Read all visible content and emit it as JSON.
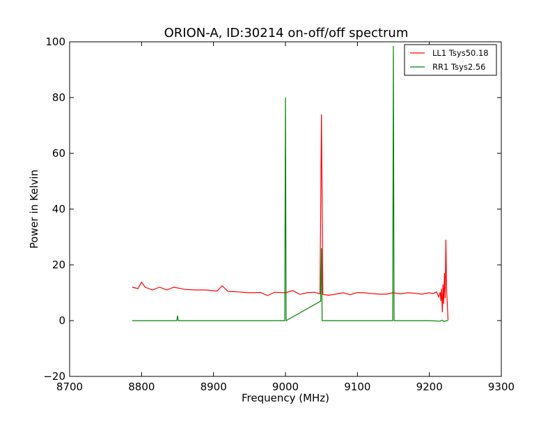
{
  "chart_data": {
    "type": "line",
    "title": "ORION-A, ID:30214 on-off/off spectrum",
    "xlabel": "Frequency (MHz)",
    "ylabel": "Power in Kelvin",
    "xlim": [
      8700,
      9300
    ],
    "ylim": [
      -20,
      100
    ],
    "xticks": [
      "8700",
      "8800",
      "8900",
      "9000",
      "9100",
      "9200",
      "9300"
    ],
    "yticks": [
      "−20",
      "0",
      "20",
      "40",
      "60",
      "80",
      "100"
    ],
    "grid": false,
    "legend_position": "top-right",
    "series": [
      {
        "name": "LL1 Tsys50.18",
        "color": "#ff0000",
        "x": [
          8787,
          8795,
          8800,
          8805,
          8815,
          8825,
          8835,
          8845,
          8860,
          8875,
          8890,
          8905,
          8912,
          8920,
          8935,
          8950,
          8965,
          8975,
          8985,
          9000,
          9010,
          9020,
          9030,
          9040,
          9048,
          9050,
          9052,
          9060,
          9070,
          9080,
          9090,
          9100,
          9110,
          9120,
          9130,
          9140,
          9150,
          9160,
          9170,
          9180,
          9190,
          9200,
          9205,
          9210,
          9213,
          9215,
          9216,
          9217,
          9218,
          9219,
          9220,
          9221,
          9222,
          9223,
          9224,
          9226
        ],
        "y": [
          12.0,
          11.5,
          13.8,
          12.0,
          11.0,
          12.0,
          11.0,
          12.0,
          11.2,
          11.0,
          11.0,
          10.6,
          12.5,
          10.5,
          10.3,
          10.0,
          10.1,
          9.0,
          10.2,
          10.0,
          10.8,
          9.4,
          10.0,
          10.2,
          9.6,
          74.0,
          9.4,
          9.1,
          9.5,
          10.0,
          9.3,
          10.1,
          10.0,
          9.7,
          9.5,
          9.5,
          10.0,
          9.6,
          10.0,
          9.8,
          9.5,
          10.0,
          9.7,
          10.3,
          8.5,
          10.2,
          7.0,
          11.5,
          3.0,
          13.0,
          6.0,
          17.0,
          8.0,
          29.0,
          11.0,
          0.2
        ]
      },
      {
        "name": "RR1 Tsys2.56",
        "color": "#008000",
        "x": [
          8787,
          8849,
          8850,
          8851,
          8875,
          8900,
          8950,
          8999,
          9000,
          9001,
          9049,
          9050,
          9051,
          9060,
          9080,
          9100,
          9149,
          9150,
          9151,
          9200,
          9215,
          9218,
          9220,
          9224,
          9226
        ],
        "y": [
          0,
          0,
          1.8,
          0,
          0,
          0,
          0,
          0,
          80.0,
          0,
          7.0,
          26.0,
          0,
          0,
          0,
          0,
          0,
          98.5,
          0,
          0,
          -0.2,
          0.2,
          -0.3,
          0,
          0
        ]
      }
    ]
  }
}
